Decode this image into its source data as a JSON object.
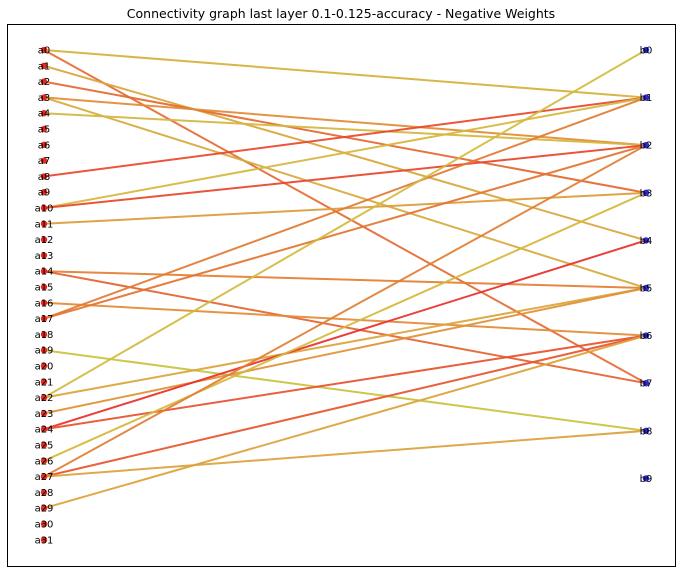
{
  "title": "Connectivity graph last layer 0.1-0.125-accuracy - Negative Weights",
  "colors": {
    "left_node": "#e8271e",
    "right_node": "#2a2ad8",
    "frame": "#000000",
    "background": "#ffffff"
  },
  "left_nodes": [
    "a0",
    "a1",
    "a2",
    "a3",
    "a4",
    "a5",
    "a6",
    "a7",
    "a8",
    "a9",
    "a10",
    "a11",
    "a12",
    "a13",
    "a14",
    "a15",
    "a16",
    "a17",
    "a18",
    "a19",
    "a20",
    "a21",
    "a22",
    "a23",
    "a24",
    "a25",
    "a26",
    "a27",
    "a28",
    "a29",
    "a30",
    "a31"
  ],
  "right_nodes": [
    "b0",
    "b1",
    "b2",
    "b3",
    "b4",
    "b5",
    "b6",
    "b7",
    "b8",
    "b9"
  ],
  "edges": [
    {
      "from": 0,
      "to": 1,
      "color": "#d6b03a"
    },
    {
      "from": 0,
      "to": 7,
      "color": "#e46a33"
    },
    {
      "from": 1,
      "to": 4,
      "color": "#d9a53a"
    },
    {
      "from": 2,
      "to": 3,
      "color": "#e4682f"
    },
    {
      "from": 3,
      "to": 2,
      "color": "#e28a33"
    },
    {
      "from": 3,
      "to": 5,
      "color": "#d6a93b"
    },
    {
      "from": 4,
      "to": 2,
      "color": "#d4b53c"
    },
    {
      "from": 8,
      "to": 1,
      "color": "#e8472a"
    },
    {
      "from": 10,
      "to": 1,
      "color": "#d6b63c"
    },
    {
      "from": 10,
      "to": 2,
      "color": "#e8442a"
    },
    {
      "from": 11,
      "to": 3,
      "color": "#dd9a37"
    },
    {
      "from": 14,
      "to": 5,
      "color": "#e27e32"
    },
    {
      "from": 14,
      "to": 7,
      "color": "#e4622f"
    },
    {
      "from": 16,
      "to": 6,
      "color": "#e48a35"
    },
    {
      "from": 17,
      "to": 1,
      "color": "#e27a32"
    },
    {
      "from": 17,
      "to": 2,
      "color": "#e4722f"
    },
    {
      "from": 19,
      "to": 8,
      "color": "#c9c23c"
    },
    {
      "from": 22,
      "to": 0,
      "color": "#d0bb3c"
    },
    {
      "from": 22,
      "to": 5,
      "color": "#dba43a"
    },
    {
      "from": 23,
      "to": 5,
      "color": "#e09034"
    },
    {
      "from": 24,
      "to": 4,
      "color": "#e8302a"
    },
    {
      "from": 24,
      "to": 6,
      "color": "#e8502c"
    },
    {
      "from": 26,
      "to": 3,
      "color": "#d4b83b"
    },
    {
      "from": 27,
      "to": 2,
      "color": "#e07e33"
    },
    {
      "from": 27,
      "to": 6,
      "color": "#e8542c"
    },
    {
      "from": 27,
      "to": 8,
      "color": "#dba23a"
    },
    {
      "from": 29,
      "to": 6,
      "color": "#dca23a"
    }
  ]
}
